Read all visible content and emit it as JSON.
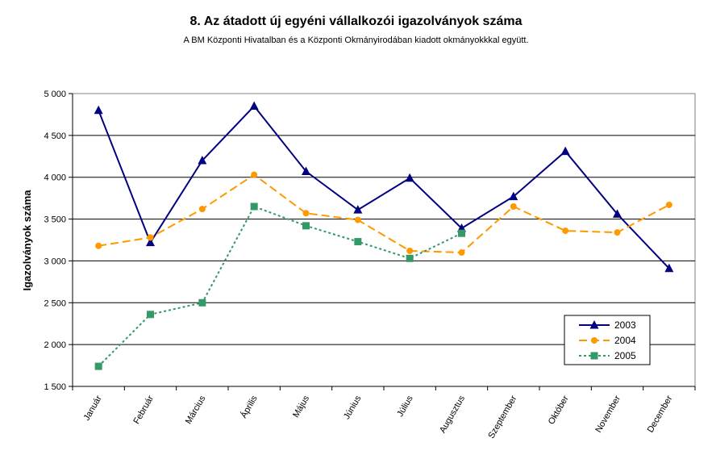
{
  "chart_data": {
    "type": "line",
    "title": "8. Az átadott új egyéni vállalkozói  igazolványok száma",
    "subtitle": "A BM Központi Hivatalban és a Központi Okmányirodában kiadott okmányokkkal együtt.",
    "ylabel": "Igazolványok száma",
    "xlabel": "",
    "ylim": [
      1500,
      5000
    ],
    "y_ticks": [
      1500,
      2000,
      2500,
      3000,
      3500,
      4000,
      4500,
      5000
    ],
    "y_tick_labels": [
      "1 500",
      "2 000",
      "2 500",
      "3 000",
      "3 500",
      "4 000",
      "4 500",
      "5 000"
    ],
    "grid": "horizontal",
    "legend_position": "bottom-right",
    "categories": [
      "Január",
      "Február",
      "Március",
      "Április",
      "Május",
      "Június",
      "Július",
      "Augusztus",
      "Szeptember",
      "Október",
      "November",
      "December"
    ],
    "series": [
      {
        "name": "2003",
        "color": "#000080",
        "dash": "solid",
        "marker": "triangle",
        "values": [
          4800,
          3220,
          4200,
          4850,
          4070,
          3610,
          3990,
          3390,
          3770,
          4310,
          3560,
          2910
        ]
      },
      {
        "name": "2004",
        "color": "#FF9900",
        "dash": "dashed",
        "marker": "circle",
        "values": [
          3180,
          3280,
          3620,
          4030,
          3570,
          3490,
          3120,
          3100,
          3650,
          3360,
          3340,
          3670
        ]
      },
      {
        "name": "2005",
        "color": "#339966",
        "dash": "dotted",
        "marker": "square",
        "values": [
          1740,
          2360,
          2500,
          3650,
          3420,
          3230,
          3030,
          3330,
          null,
          null,
          null,
          null
        ]
      }
    ]
  }
}
